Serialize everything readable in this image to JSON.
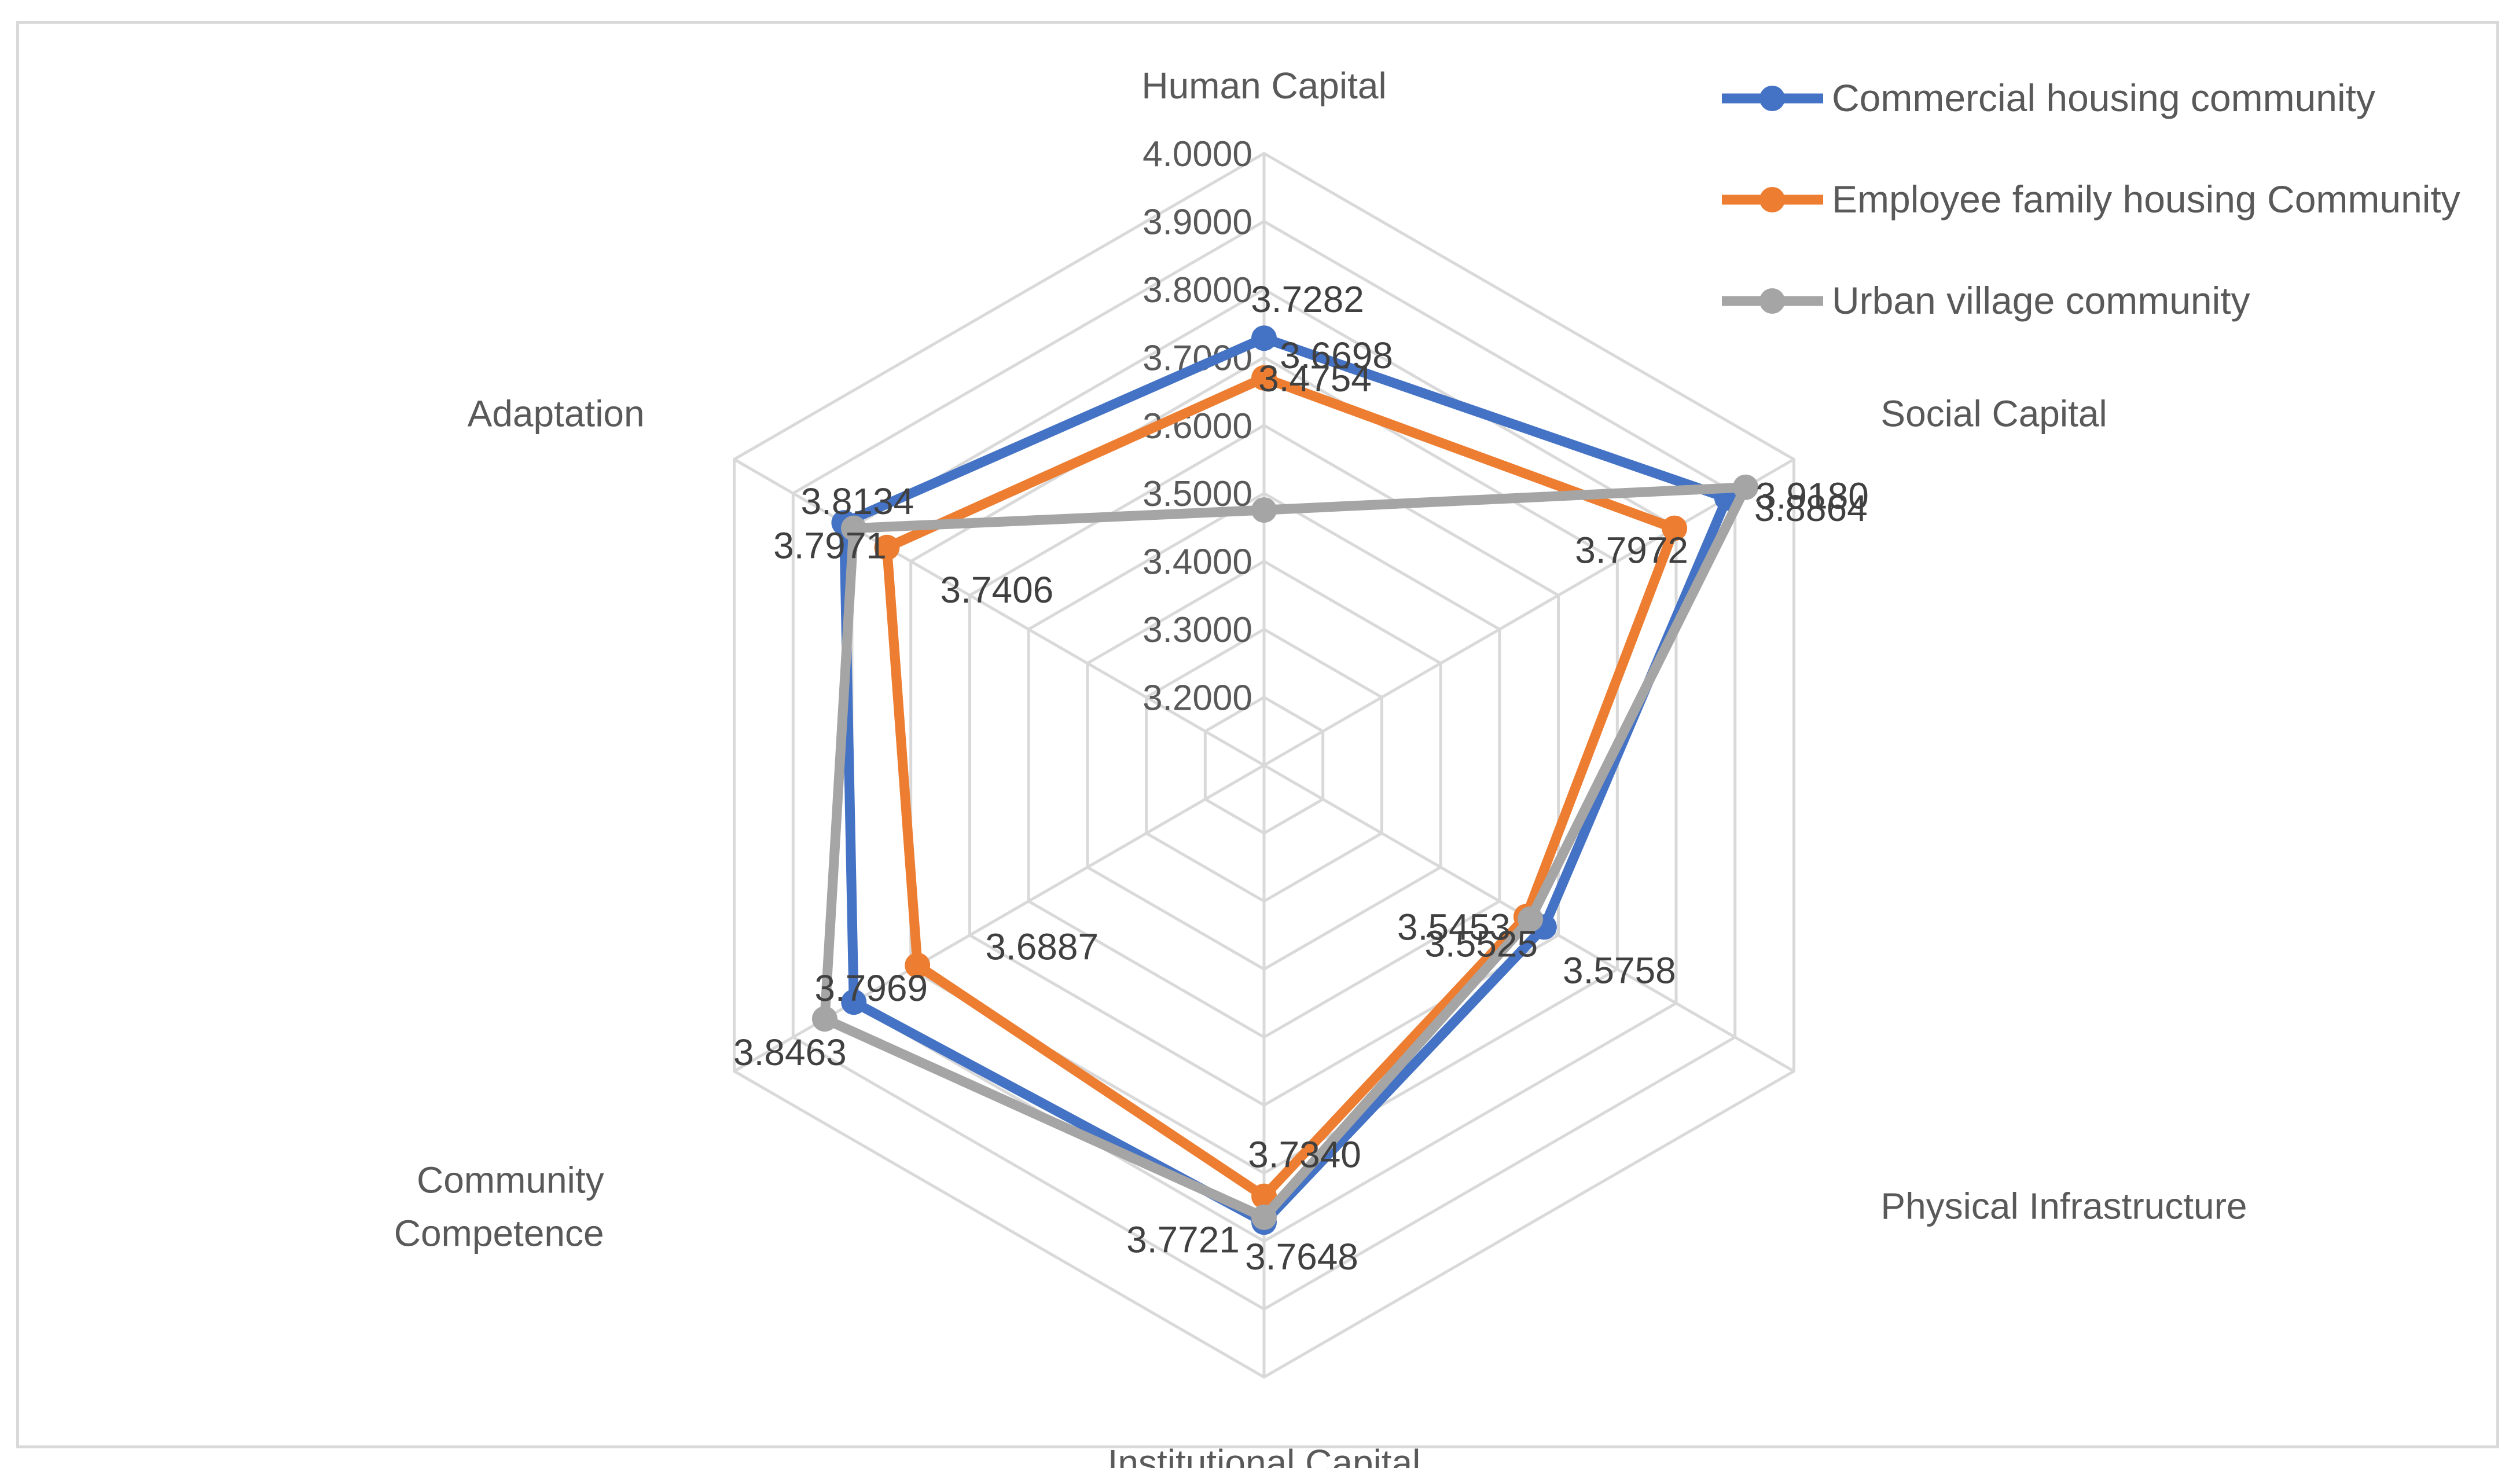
{
  "chart_data": {
    "type": "radar",
    "title": "",
    "axes": [
      "Human Capital",
      "Social Capital",
      "Physical Infrastructure",
      "Institutional Capital",
      "Community Competence",
      "Adaptation"
    ],
    "axis_label_lines": [
      [
        "Human Capital"
      ],
      [
        "Social Capital"
      ],
      [
        "Physical Infrastructure"
      ],
      [
        "Institutional Capital"
      ],
      [
        "Community",
        "Competence"
      ],
      [
        "Adaptation"
      ]
    ],
    "rlim": [
      3.1,
      4.0
    ],
    "ticks": [
      3.2,
      3.3,
      3.4,
      3.5,
      3.6,
      3.7,
      3.8,
      3.9,
      4.0
    ],
    "tick_labels": [
      "3.2000",
      "3.3000",
      "3.4000",
      "3.5000",
      "3.6000",
      "3.7000",
      "3.8000",
      "3.9000",
      "4.0000"
    ],
    "legend_position": "top-right",
    "series": [
      {
        "name": "Commercial housing community",
        "color": "#4472c4",
        "values": [
          3.7282,
          3.8864,
          3.5758,
          3.7721,
          3.7969,
          3.8134
        ],
        "labels": [
          "3.7282",
          "3.8864",
          "3.5758",
          "3.7721",
          "3.7969",
          "3.8134"
        ]
      },
      {
        "name": "Employee family housing Community",
        "color": "#ed7d31",
        "values": [
          3.6698,
          3.7972,
          3.5453,
          3.734,
          3.6887,
          3.7406
        ],
        "labels": [
          "3.6698",
          "3.7972",
          "3.5453",
          "3.7340",
          "3.6887",
          "3.7406"
        ]
      },
      {
        "name": "Urban village community",
        "color": "#a5a5a5",
        "values": [
          3.4754,
          3.918,
          3.5525,
          3.7648,
          3.8463,
          3.7971
        ],
        "labels": [
          "3.4754",
          "3.9180",
          "3.5525",
          "3.7648",
          "3.8463",
          "3.7971"
        ]
      }
    ]
  }
}
